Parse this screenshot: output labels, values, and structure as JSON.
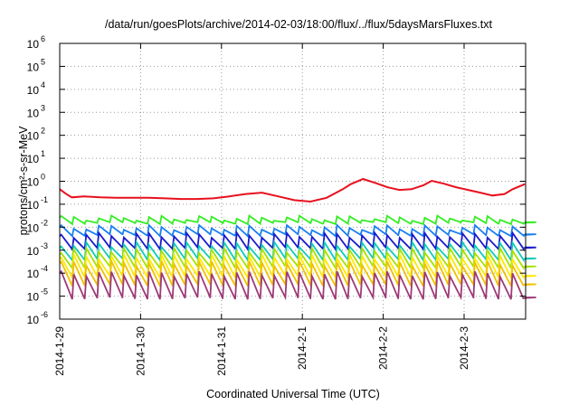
{
  "chart_data": {
    "type": "line",
    "title": "/data/run/goesPlots/archive/2014-02-03/18:00/flux/../flux/5daysMarsFluxes.txt",
    "xlabel": "Coordinated Universal Time (UTC)",
    "ylabel": "protons/cm²-s-sr-MeV",
    "y_scale": "log",
    "ylim": [
      1e-06,
      1000000.0
    ],
    "y_tick_exponents": [
      -6,
      -5,
      -4,
      -3,
      -2,
      -1,
      0,
      1,
      2,
      3,
      4,
      5,
      6
    ],
    "y_tick_base": "10",
    "x_tick_labels": [
      "2014-1-29",
      "2014-1-30",
      "2014-1-31",
      "2014-2-1",
      "2014-2-2",
      "2014-2-3"
    ],
    "xlim_days": [
      0,
      5.75
    ],
    "grid": true,
    "legend": "none",
    "series": [
      {
        "color": "#e8101e",
        "kind": "red",
        "x_days": [
          0,
          0.08,
          0.15,
          0.3,
          0.5,
          0.7,
          0.9,
          1.1,
          1.3,
          1.5,
          1.7,
          1.9,
          2.1,
          2.3,
          2.5,
          2.7,
          2.9,
          3.1,
          3.3,
          3.5,
          3.6,
          3.75,
          3.9,
          4.05,
          4.2,
          4.35,
          4.5,
          4.6,
          4.75,
          4.9,
          5.05,
          5.2,
          5.35,
          5.5,
          5.6,
          5.75
        ],
        "values": [
          0.45,
          0.28,
          0.2,
          0.22,
          0.2,
          0.19,
          0.19,
          0.19,
          0.18,
          0.17,
          0.17,
          0.18,
          0.22,
          0.28,
          0.32,
          0.22,
          0.15,
          0.13,
          0.19,
          0.45,
          0.75,
          1.25,
          0.85,
          0.55,
          0.42,
          0.45,
          0.68,
          1.05,
          0.78,
          0.55,
          0.42,
          0.32,
          0.24,
          0.28,
          0.45,
          0.75
        ]
      },
      {
        "color": "#33ee22",
        "kind": "saw",
        "base": 0.015,
        "amp": 1.7,
        "period": 0.155
      },
      {
        "color": "#1a7ff0",
        "kind": "saw",
        "base": 0.0045,
        "amp": 2.2,
        "period": 0.155
      },
      {
        "color": "#1a1acc",
        "kind": "saw",
        "base": 0.0012,
        "amp": 3.8,
        "period": 0.155
      },
      {
        "color": "#11ccb8",
        "kind": "saw",
        "base": 0.0004,
        "amp": 4.5,
        "period": 0.155
      },
      {
        "color": "#a6e100",
        "kind": "saw",
        "base": 0.00018,
        "amp": 5.5,
        "period": 0.155
      },
      {
        "color": "#ffe900",
        "kind": "saw",
        "base": 7e-05,
        "amp": 7.5,
        "period": 0.155
      },
      {
        "color": "#f0c000",
        "kind": "saw",
        "base": 3e-05,
        "amp": 9.0,
        "period": 0.155
      },
      {
        "color": "#9d3a78",
        "kind": "saw",
        "base": 8e-06,
        "amp": 12.0,
        "period": 0.155
      }
    ]
  }
}
